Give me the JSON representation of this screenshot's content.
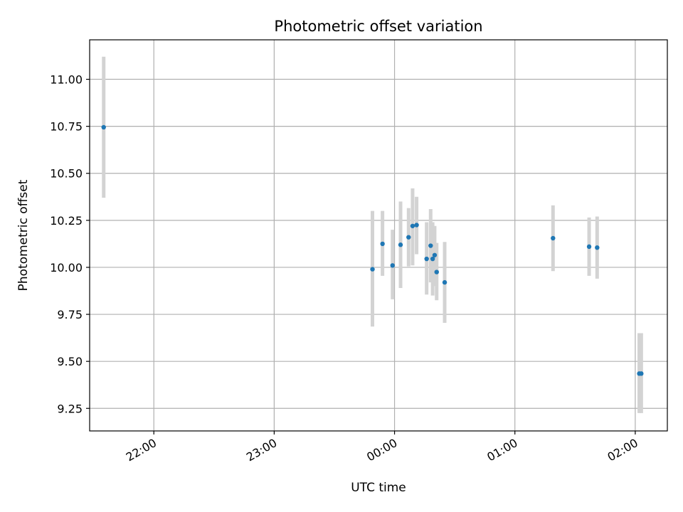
{
  "chart_data": {
    "type": "scatter",
    "title": "Photometric offset variation",
    "xlabel": "UTC time",
    "ylabel": "Photometric offset",
    "x_ticks": [
      "22:00",
      "23:00",
      "00:00",
      "01:00",
      "02:00"
    ],
    "y_ticks": [
      "9.25",
      "9.50",
      "9.75",
      "10.00",
      "10.25",
      "10.50",
      "10.75",
      "11.00"
    ],
    "xlim": [
      "21:28",
      "02:16"
    ],
    "ylim": [
      9.13,
      11.21
    ],
    "grid": true,
    "colors": {
      "marker": "#1f77b4",
      "errorbar": "#d3d3d3",
      "grid": "#b0b0b0"
    },
    "points": [
      {
        "x": "21:35",
        "y": 10.745,
        "yerr_low": 10.37,
        "yerr_high": 11.12
      },
      {
        "x": "23:49",
        "y": 9.99,
        "yerr_low": 9.685,
        "yerr_high": 10.3
      },
      {
        "x": "23:54",
        "y": 10.125,
        "yerr_low": 9.955,
        "yerr_high": 10.3
      },
      {
        "x": "23:59",
        "y": 10.01,
        "yerr_low": 9.83,
        "yerr_high": 10.2
      },
      {
        "x": "00:03",
        "y": 10.12,
        "yerr_low": 9.89,
        "yerr_high": 10.35
      },
      {
        "x": "00:07",
        "y": 10.16,
        "yerr_low": 10.005,
        "yerr_high": 10.315
      },
      {
        "x": "00:09",
        "y": 10.22,
        "yerr_low": 10.01,
        "yerr_high": 10.42
      },
      {
        "x": "00:11",
        "y": 10.225,
        "yerr_low": 10.07,
        "yerr_high": 10.375
      },
      {
        "x": "00:16",
        "y": 10.045,
        "yerr_low": 9.855,
        "yerr_high": 10.24
      },
      {
        "x": "00:18",
        "y": 10.115,
        "yerr_low": 9.92,
        "yerr_high": 10.31
      },
      {
        "x": "00:19",
        "y": 10.045,
        "yerr_low": 9.85,
        "yerr_high": 10.24
      },
      {
        "x": "00:20",
        "y": 10.065,
        "yerr_low": 9.9,
        "yerr_high": 10.22
      },
      {
        "x": "00:21",
        "y": 9.975,
        "yerr_low": 9.825,
        "yerr_high": 10.13
      },
      {
        "x": "00:25",
        "y": 9.92,
        "yerr_low": 9.705,
        "yerr_high": 10.135
      },
      {
        "x": "01:19",
        "y": 10.155,
        "yerr_low": 9.98,
        "yerr_high": 10.33
      },
      {
        "x": "01:37",
        "y": 10.11,
        "yerr_low": 9.955,
        "yerr_high": 10.265
      },
      {
        "x": "01:41",
        "y": 10.105,
        "yerr_low": 9.94,
        "yerr_high": 10.27
      },
      {
        "x": "02:02",
        "y": 9.435,
        "yerr_low": 9.225,
        "yerr_high": 9.65
      },
      {
        "x": "02:03",
        "y": 9.435,
        "yerr_low": 9.225,
        "yerr_high": 9.65
      }
    ]
  }
}
